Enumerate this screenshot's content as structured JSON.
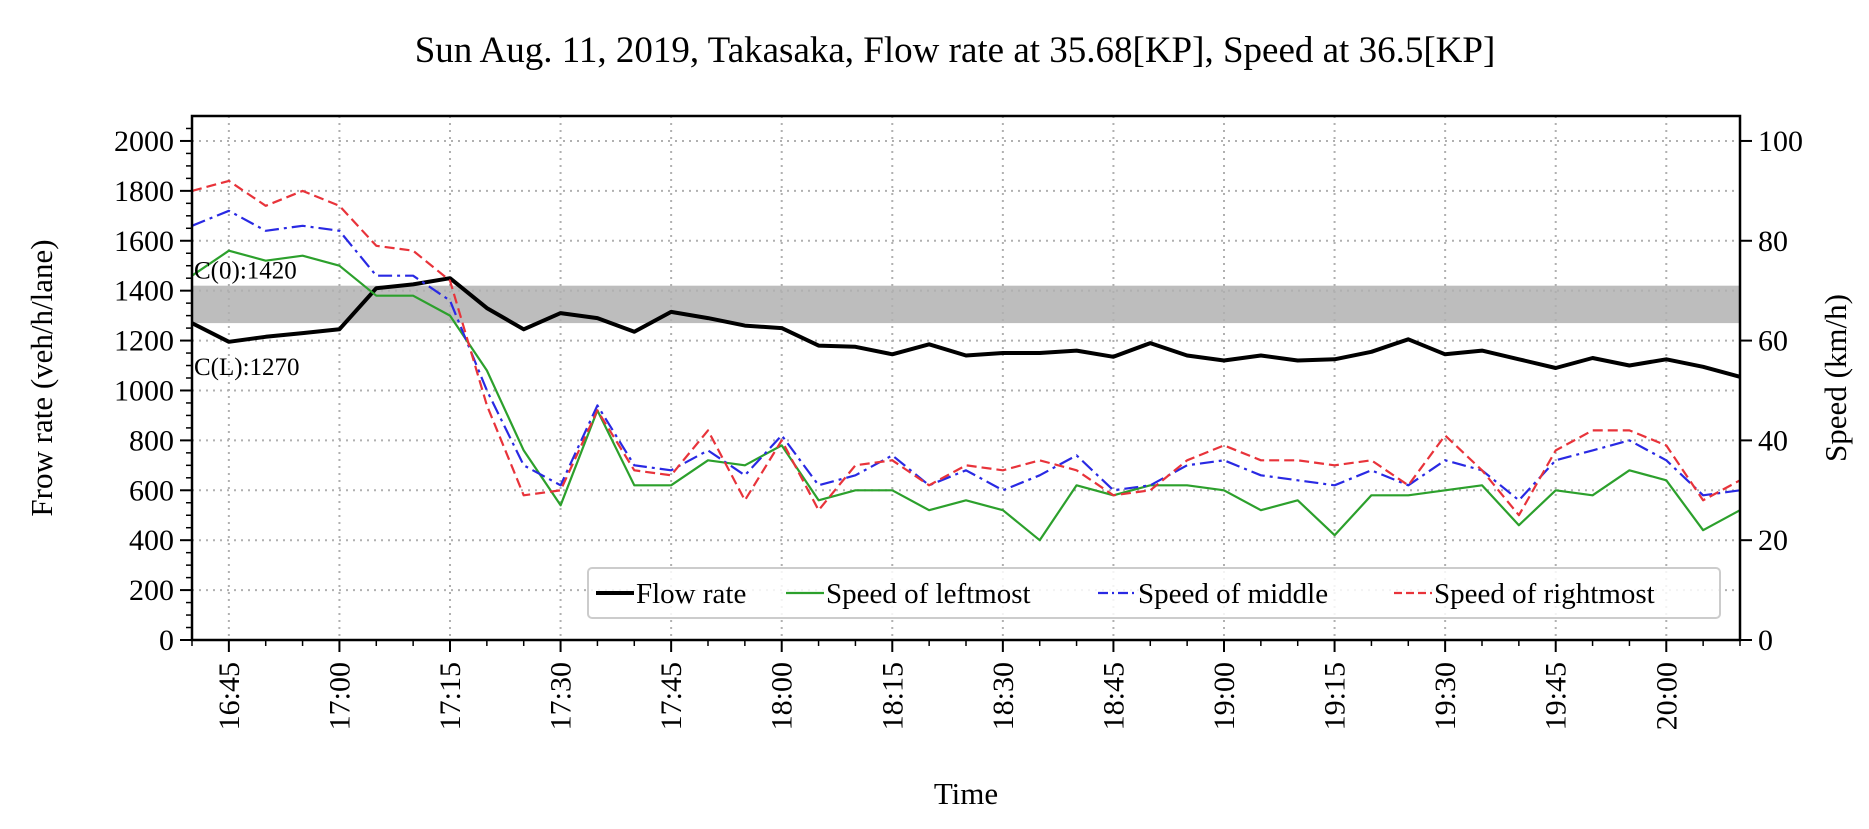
{
  "chart_data": {
    "type": "line",
    "title": "Sun Aug. 11, 2019, Takasaka, Flow rate at 35.68[KP], Speed at 36.5[KP]",
    "xlabel": "Time",
    "ylabel_left": "Frow rate (veh/h/lane)",
    "ylabel_right": "Speed (km/h)",
    "x_tick_labels": [
      "16:45",
      "17:00",
      "17:15",
      "17:30",
      "17:45",
      "18:00",
      "18:15",
      "18:30",
      "18:45",
      "19:00",
      "19:15",
      "19:30",
      "19:45",
      "20:00"
    ],
    "x_tick_minutes": [
      0,
      15,
      30,
      45,
      60,
      75,
      90,
      105,
      120,
      135,
      150,
      165,
      180,
      195
    ],
    "x_range_minutes": [
      -5,
      205
    ],
    "ylim_left": [
      0,
      2100
    ],
    "ylim_right": [
      0,
      105
    ],
    "y_left_ticks": [
      0,
      200,
      400,
      600,
      800,
      1000,
      1200,
      1400,
      1600,
      1800,
      2000
    ],
    "y_right_ticks": [
      0,
      20,
      40,
      60,
      80,
      100
    ],
    "grid": true,
    "x_minutes": [
      -5,
      0,
      5,
      10,
      15,
      20,
      25,
      30,
      35,
      40,
      45,
      50,
      55,
      60,
      65,
      70,
      75,
      80,
      85,
      90,
      95,
      100,
      105,
      110,
      115,
      120,
      125,
      130,
      135,
      140,
      145,
      150,
      155,
      160,
      165,
      170,
      175,
      180,
      185,
      190,
      195,
      200,
      205
    ],
    "capacity_band": {
      "upper": 1420,
      "lower": 1270,
      "upper_label": "C(0):1420",
      "lower_label": "C(L):1270",
      "color": "#bdbdbd"
    },
    "series": [
      {
        "name": "Flow rate",
        "axis": "left",
        "color": "#000000",
        "style": "solid",
        "values": [
          1270,
          1195,
          1215,
          1230,
          1245,
          1410,
          1425,
          1450,
          1330,
          1245,
          1310,
          1290,
          1235,
          1315,
          1290,
          1260,
          1250,
          1180,
          1175,
          1145,
          1185,
          1140,
          1150,
          1150,
          1160,
          1135,
          1190,
          1140,
          1120,
          1140,
          1120,
          1125,
          1155,
          1205,
          1145,
          1160,
          1125,
          1090,
          1130,
          1100,
          1125,
          1095,
          1055
        ]
      },
      {
        "name": "Speed of leftmost",
        "axis": "right",
        "color": "#2ca02c",
        "style": "solid",
        "values": [
          73,
          78,
          76,
          77,
          75,
          69,
          69,
          65,
          54,
          38,
          27,
          46,
          31,
          31,
          36,
          35,
          39,
          28,
          30,
          30,
          26,
          28,
          26,
          20,
          31,
          29,
          31,
          31,
          30,
          26,
          28,
          21,
          29,
          29,
          30,
          31,
          23,
          30,
          29,
          34,
          32,
          22,
          26
        ]
      },
      {
        "name": "Speed of middle",
        "axis": "right",
        "color": "#2929e3",
        "style": "dashdot",
        "values": [
          83,
          86,
          82,
          83,
          82,
          73,
          73,
          68,
          50,
          35,
          31,
          47,
          35,
          34,
          38,
          33,
          41,
          31,
          33,
          37,
          31,
          34,
          30,
          33,
          37,
          30,
          31,
          35,
          36,
          33,
          32,
          31,
          34,
          31,
          36,
          34,
          28,
          36,
          38,
          40,
          36,
          29,
          30
        ]
      },
      {
        "name": "Speed of rightmost",
        "axis": "right",
        "color": "#e8333a",
        "style": "dashed",
        "values": [
          90,
          92,
          87,
          90,
          87,
          79,
          78,
          72,
          47,
          29,
          30,
          46,
          34,
          33,
          42,
          28,
          40,
          26,
          35,
          36,
          31,
          35,
          34,
          36,
          34,
          29,
          30,
          36,
          39,
          36,
          36,
          35,
          36,
          31,
          41,
          34,
          25,
          38,
          42,
          42,
          39,
          28,
          32
        ]
      }
    ],
    "legend": {
      "position": "lower-right",
      "entries": [
        "Flow rate",
        "Speed of leftmost",
        "Speed of middle",
        "Speed of rightmost"
      ]
    }
  }
}
